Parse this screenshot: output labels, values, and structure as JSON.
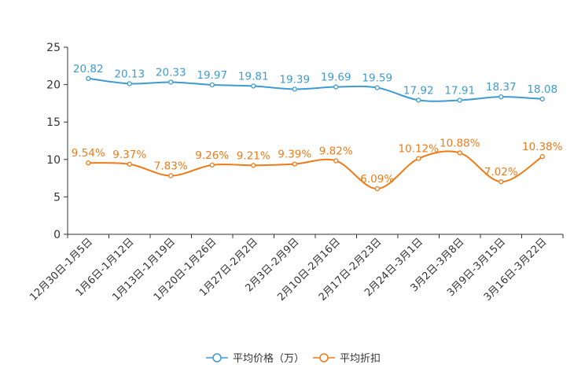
{
  "chart_data": {
    "type": "line",
    "title": "",
    "xlabel": "",
    "ylabel": "",
    "ylim": [
      0,
      25
    ],
    "yticks": [
      0,
      5,
      10,
      15,
      20,
      25
    ],
    "grid": false,
    "legend_position": "bottom-center",
    "categories": [
      "12月30日-1月5日",
      "1月6日-1月12日",
      "1月13日-1月19日",
      "1月20日-1月26日",
      "1月27日-2月2日",
      "2月3日-2月9日",
      "2月10日-2月16日",
      "2月17日-2月23日",
      "2月24日-3月1日",
      "3月2日-3月8日",
      "3月9日-3月15日",
      "3月16日-3月22日"
    ],
    "series": [
      {
        "name": "平均价格（万）",
        "color": "#3d9bd1",
        "values": [
          20.82,
          20.13,
          20.33,
          19.97,
          19.81,
          19.39,
          19.69,
          19.59,
          17.92,
          17.91,
          18.37,
          18.08
        ],
        "labels": [
          "20.82",
          "20.13",
          "20.33",
          "19.97",
          "19.81",
          "19.39",
          "19.69",
          "19.59",
          "17.92",
          "17.91",
          "18.37",
          "18.08"
        ]
      },
      {
        "name": "平均折扣",
        "color": "#f07a17",
        "values": [
          9.54,
          9.37,
          7.83,
          9.26,
          9.21,
          9.39,
          9.82,
          6.09,
          10.12,
          10.88,
          7.02,
          10.38
        ],
        "labels": [
          "9.54%",
          "9.37%",
          "7.83%",
          "9.26%",
          "9.21%",
          "9.39%",
          "9.82%",
          "6.09%",
          "10.12%",
          "10.88%",
          "7.02%",
          "10.38%"
        ]
      }
    ]
  }
}
